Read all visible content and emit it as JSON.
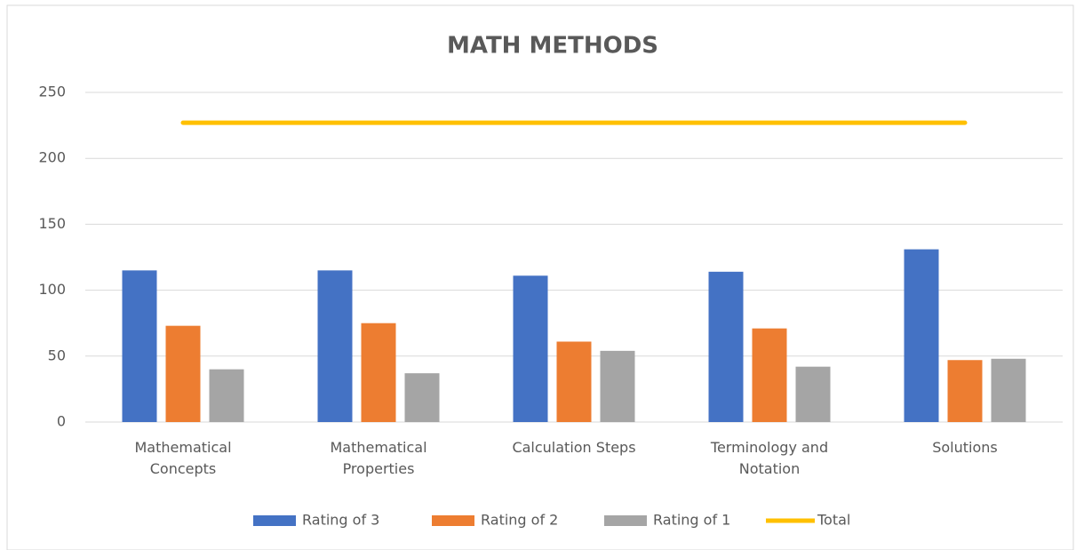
{
  "chart_data": {
    "type": "bar",
    "title": "MATH METHODS",
    "categories": [
      "Mathematical Concepts",
      "Mathematical Properties",
      "Calculation Steps",
      "Terminology and Notation",
      "Solutions"
    ],
    "series": [
      {
        "name": "Rating of 3",
        "color": "#4472c4",
        "values": [
          115,
          115,
          111,
          114,
          131
        ]
      },
      {
        "name": "Rating of 2",
        "color": "#ed7d31",
        "values": [
          73,
          75,
          61,
          71,
          47
        ]
      },
      {
        "name": "Rating of 1",
        "color": "#a5a5a5",
        "values": [
          40,
          37,
          54,
          42,
          48
        ]
      },
      {
        "name": "Total",
        "color": "#ffc000",
        "type": "line",
        "values": [
          227,
          227,
          227,
          227,
          227
        ]
      }
    ],
    "ylim": [
      0,
      250
    ],
    "yticks": [
      0,
      50,
      100,
      150,
      200,
      250
    ],
    "grid": true,
    "legend": "bottom"
  }
}
